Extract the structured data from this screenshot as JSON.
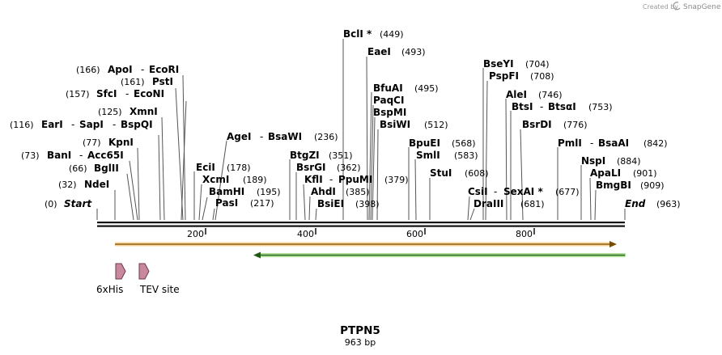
{
  "credit": {
    "prefix": "Created by",
    "brand": "SnapGene"
  },
  "sequence": {
    "name": "PTPN5",
    "length_label": "963 bp",
    "length": 963
  },
  "ticks": [
    "200",
    "400",
    "600",
    "800"
  ],
  "ends": {
    "start_pos": "(0)",
    "start_label": "Start",
    "end_label": "End",
    "end_pos": "(963)"
  },
  "sites": [
    {
      "id": "ndei",
      "enzyme": "NdeI",
      "pos": "(32)"
    },
    {
      "id": "bglii",
      "enzyme": "BglII",
      "pos": "(66)"
    },
    {
      "id": "bani",
      "enzyme": "BanI",
      "pos": "(73)",
      "sep": "-",
      "enzyme2": "Acc65I"
    },
    {
      "id": "kpni",
      "enzyme": "KpnI",
      "pos": "(77)"
    },
    {
      "id": "eari",
      "enzyme": "EarI",
      "pos": "(116)",
      "sep": "-",
      "enzyme2": "SapI",
      "sep2": "-",
      "enzyme3": "BspQI"
    },
    {
      "id": "xmni",
      "enzyme": "XmnI",
      "pos": "(125)"
    },
    {
      "id": "sfci",
      "enzyme": "SfcI",
      "pos": "(157)",
      "sep": "-",
      "enzyme2": "EcoNI"
    },
    {
      "id": "psti",
      "enzyme": "PstI",
      "pos": "(161)"
    },
    {
      "id": "apoi",
      "enzyme": "ApoI",
      "pos": "(166)",
      "sep": "-",
      "enzyme2": "EcoRI"
    },
    {
      "id": "pasi",
      "enzyme": "PasI",
      "pos": "(217)"
    },
    {
      "id": "bamhi",
      "enzyme": "BamHI",
      "pos": "(195)"
    },
    {
      "id": "xcmi",
      "enzyme": "XcmI",
      "pos": "(189)"
    },
    {
      "id": "ecii",
      "enzyme": "EciI",
      "pos": "(178)"
    },
    {
      "id": "agei",
      "enzyme": "AgeI",
      "sep": "-",
      "enzyme2": "BsaWI",
      "pos": "(236)"
    },
    {
      "id": "btgzi",
      "enzyme": "BtgZI",
      "pos": "(351)"
    },
    {
      "id": "bsrgi",
      "enzyme": "BsrGI",
      "pos": "(362)"
    },
    {
      "id": "kfli",
      "enzyme": "KflI",
      "sep": "-",
      "enzyme2": "PpuMI",
      "pos": "(379)"
    },
    {
      "id": "ahdi",
      "enzyme": "AhdI",
      "pos": "(385)"
    },
    {
      "id": "bsiei",
      "enzyme": "BsiEI",
      "pos": "(398)"
    },
    {
      "id": "bcli",
      "enzyme": "BclI *",
      "pos": "(449)"
    },
    {
      "id": "eaei",
      "enzyme": "EaeI",
      "pos": "(493)"
    },
    {
      "id": "bfuai",
      "enzyme": "BfuAI",
      "pos": "(495)"
    },
    {
      "id": "paqci",
      "enzyme": "PaqCI"
    },
    {
      "id": "bspmi",
      "enzyme": "BspMI"
    },
    {
      "id": "bsiwi",
      "enzyme": "BsiWI",
      "pos": "(512)"
    },
    {
      "id": "bpuei",
      "enzyme": "BpuEI",
      "pos": "(568)"
    },
    {
      "id": "smli",
      "enzyme": "SmlI",
      "pos": "(583)"
    },
    {
      "id": "stui",
      "enzyme": "StuI",
      "pos": "(608)"
    },
    {
      "id": "csii",
      "enzyme": "CsiI",
      "sep": "-",
      "enzyme2": "SexAI *",
      "pos": "(677)"
    },
    {
      "id": "draiii",
      "enzyme": "DraIII",
      "pos": "(681)"
    },
    {
      "id": "bseyi",
      "enzyme": "BseYI",
      "pos": "(704)"
    },
    {
      "id": "pspfi",
      "enzyme": "PspFI",
      "pos": "(708)"
    },
    {
      "id": "alei",
      "enzyme": "AleI",
      "pos": "(746)"
    },
    {
      "id": "btsi",
      "enzyme": "BtsI",
      "sep": "-",
      "enzyme2": "BtsαI",
      "pos": "(753)"
    },
    {
      "id": "bsrdi",
      "enzyme": "BsrDI",
      "pos": "(776)"
    },
    {
      "id": "pmli",
      "enzyme": "PmlI",
      "sep": "-",
      "enzyme2": "BsaAI",
      "pos": "(842)"
    },
    {
      "id": "nspi",
      "enzyme": "NspI",
      "pos": "(884)"
    },
    {
      "id": "apali",
      "enzyme": "ApaLI",
      "pos": "(901)"
    },
    {
      "id": "bmgbi",
      "enzyme": "BmgBI",
      "pos": "(909)"
    }
  ],
  "features": [
    {
      "id": "orange",
      "label": "",
      "color": "#f0a830",
      "direction": "forward"
    },
    {
      "id": "green",
      "label": "",
      "color": "#8ad06a",
      "direction": "reverse"
    },
    {
      "id": "6xhis",
      "label": "6xHis",
      "color": "#c9889e"
    },
    {
      "id": "tev",
      "label": "TEV site",
      "color": "#c9889e"
    }
  ]
}
